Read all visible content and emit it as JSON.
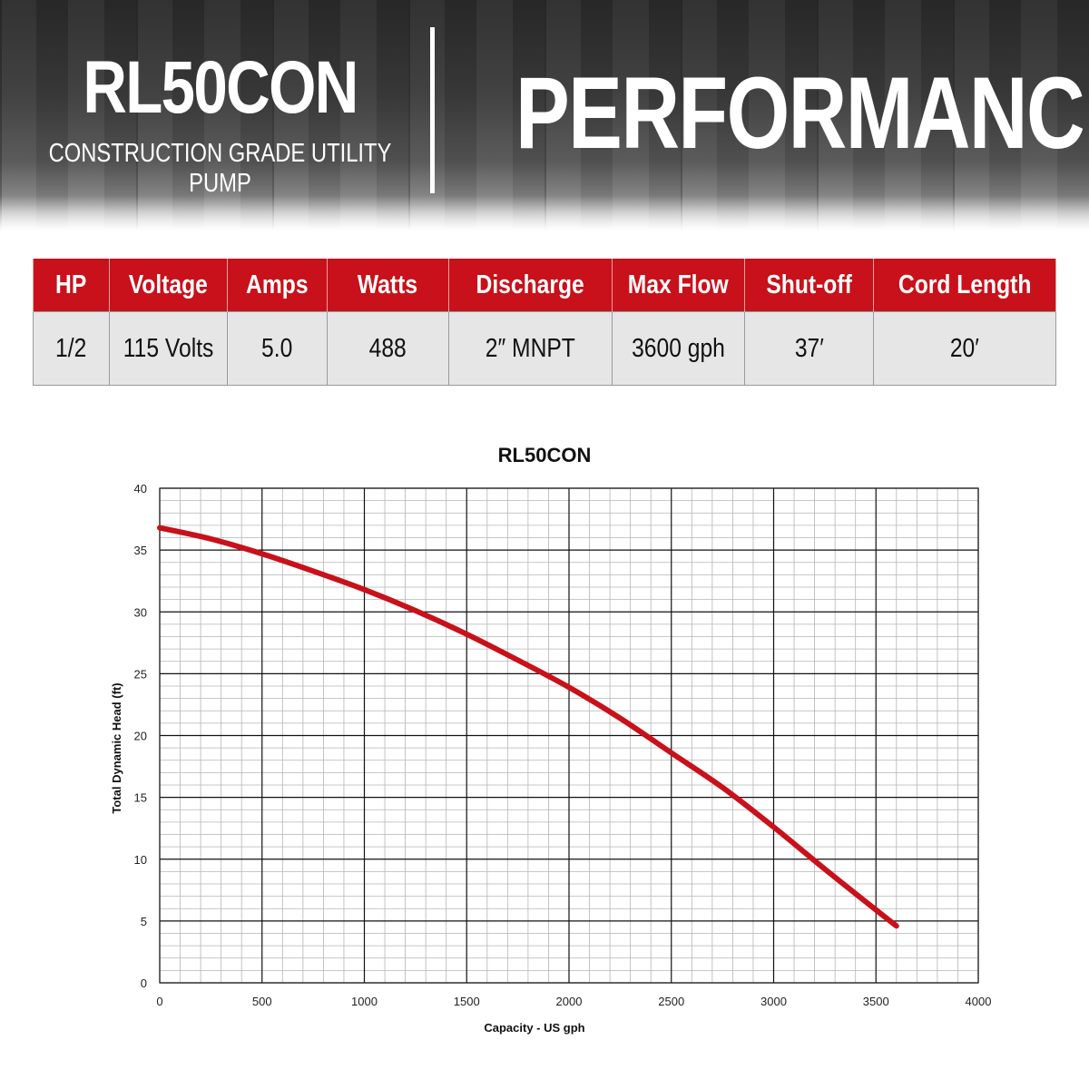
{
  "header": {
    "model": "RL50CON",
    "subtitle": "CONSTRUCTION GRADE UTILITY PUMP",
    "section_title": "PERFORMANCE"
  },
  "specs": {
    "columns": [
      "HP",
      "Voltage",
      "Amps",
      "Watts",
      "Discharge",
      "Max Flow",
      "Shut-off",
      "Cord Length"
    ],
    "values": [
      "1/2",
      "115 Volts",
      "5.0",
      "488",
      "2″ MNPT",
      "3600 gph",
      "37′",
      "20′"
    ]
  },
  "colors": {
    "accent": "#c8111a",
    "curve": "#c8111a",
    "table_row": "#e6e6e6"
  },
  "chart_data": {
    "type": "line",
    "title": "RL50CON",
    "xlabel": "Capacity - US gph",
    "ylabel": "Total Dynamic Head (ft)",
    "xlim": [
      0,
      4000
    ],
    "ylim": [
      0,
      40
    ],
    "x_ticks": [
      0,
      500,
      1000,
      1500,
      2000,
      2500,
      3000,
      3500,
      4000
    ],
    "y_ticks": [
      0,
      5,
      10,
      15,
      20,
      25,
      30,
      35,
      40
    ],
    "grid": true,
    "series": [
      {
        "x": [
          0,
          250,
          500,
          750,
          1000,
          1250,
          1500,
          1750,
          2000,
          2250,
          2500,
          2750,
          3000,
          3250,
          3500,
          3600
        ],
        "y": [
          36.8,
          35.9,
          34.7,
          33.3,
          31.8,
          30.1,
          28.2,
          26.1,
          23.9,
          21.4,
          18.6,
          15.8,
          12.6,
          9.2,
          5.9,
          4.6
        ]
      }
    ]
  }
}
